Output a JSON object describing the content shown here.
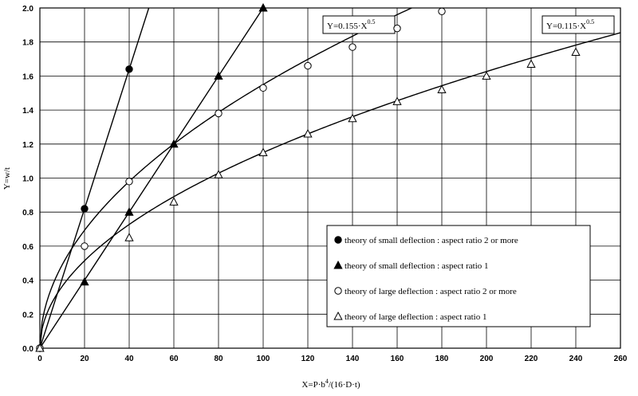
{
  "chart_data": {
    "type": "scatter",
    "x_label": [
      "X=P·b",
      "4",
      "/(16·D·t)"
    ],
    "y_label": "Y=w/t",
    "xlim": [
      0,
      260
    ],
    "xticks": [
      0,
      20,
      40,
      60,
      80,
      100,
      120,
      140,
      160,
      180,
      200,
      220,
      240,
      260
    ],
    "ylim": [
      0,
      2
    ],
    "yticks": [
      {
        "value": 0,
        "label": "0.0"
      },
      0.2,
      0.4,
      0.6,
      0.8,
      {
        "value": 1,
        "label": "1.0"
      },
      1.2,
      1.4,
      1.6,
      1.8,
      {
        "value": 2,
        "label": "2.0"
      }
    ],
    "grid": true,
    "legend": "lower right",
    "series": [
      {
        "name": "theory of small deflection : aspect ratio 2 or more",
        "marker": "circle",
        "filled": true,
        "trend": "linear",
        "color": "#000000",
        "x": [
          0,
          20,
          40
        ],
        "values": [
          0,
          0.82,
          1.64
        ]
      },
      {
        "name": "theory of small deflection : aspect ratio 1",
        "marker": "triangle",
        "filled": true,
        "trend": "linear",
        "color": "#000000",
        "x": [
          0,
          20,
          40,
          60,
          80,
          100
        ],
        "values": [
          0,
          0.39,
          0.8,
          1.2,
          1.6,
          2.0
        ]
      },
      {
        "name": "theory of large deflection : aspect ratio 2 or more",
        "marker": "circle",
        "filled": false,
        "color": "#000000",
        "x": [
          0,
          20,
          40,
          80,
          100,
          120,
          140,
          160,
          180
        ],
        "values": [
          0,
          0.6,
          0.98,
          1.38,
          1.53,
          1.66,
          1.77,
          1.88,
          1.98
        ]
      },
      {
        "name": "theory of large deflection : aspect ratio 1",
        "marker": "triangle",
        "filled": false,
        "color": "#000000",
        "x": [
          0,
          40,
          60,
          80,
          100,
          120,
          140,
          160,
          180,
          200,
          220,
          240
        ],
        "values": [
          0,
          0.65,
          0.86,
          1.02,
          1.15,
          1.26,
          1.35,
          1.45,
          1.52,
          1.6,
          1.67,
          1.74
        ]
      }
    ],
    "fits": [
      {
        "label": "Y=0.155·X",
        "exponent_label": "0.5",
        "coef": 0.155,
        "exponent": 0.5
      },
      {
        "label": "Y=0.115·X",
        "exponent_label": "0.5",
        "coef": 0.115,
        "exponent": 0.5
      }
    ]
  }
}
